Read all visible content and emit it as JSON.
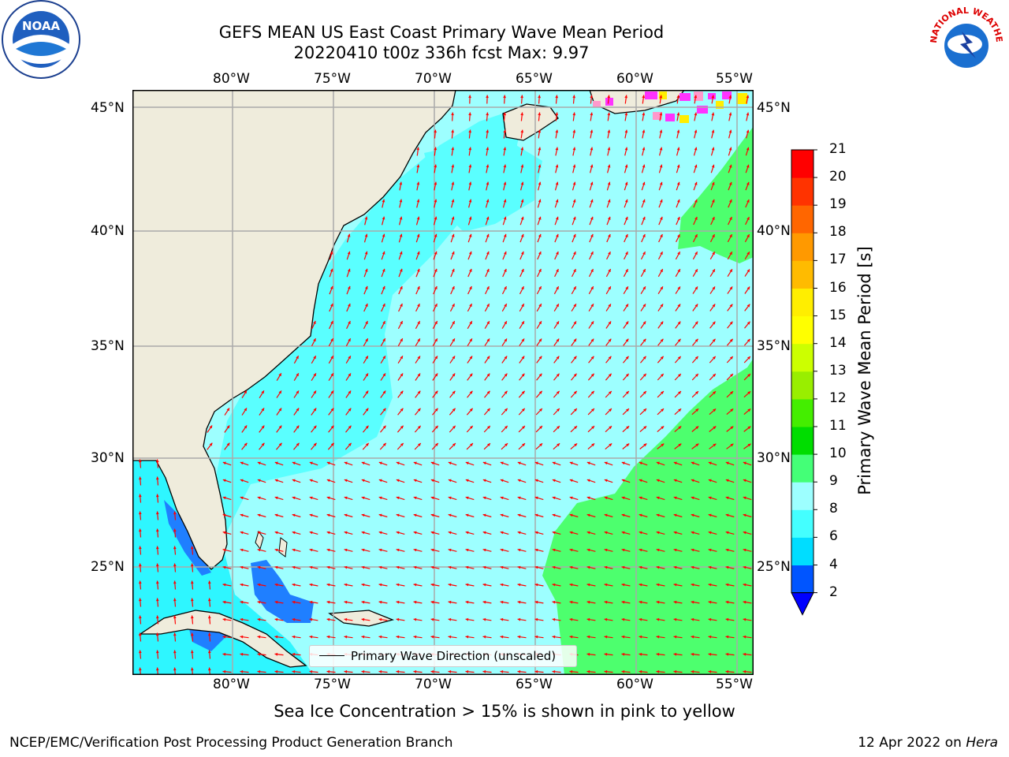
{
  "title": {
    "line1": "GEFS MEAN US East Coast Primary Wave Mean Period",
    "line2": "20220410 t00z 336h fcst   Max: 9.97"
  },
  "map": {
    "lon_labels": [
      "80°W",
      "75°W",
      "70°W",
      "65°W",
      "60°W",
      "55°W"
    ],
    "lat_labels": [
      "45°N",
      "40°N",
      "35°N",
      "30°N",
      "25°N"
    ],
    "land_color": "#efecdc",
    "grid_color": "#aaaaaa",
    "arrow_color": "#ff0000",
    "legend_label": "Primary Wave Direction (unscaled)"
  },
  "colorbar": {
    "label": "Primary Wave Mean Period [s]",
    "ticks": [
      "2",
      "4",
      "6",
      "8",
      "9",
      "10",
      "11",
      "12",
      "13",
      "14",
      "15",
      "16",
      "17",
      "18",
      "19",
      "20",
      "21"
    ],
    "colors": [
      "#0055ff",
      "#00ddff",
      "#44ffff",
      "#9dffff",
      "#44ff77",
      "#00dd00",
      "#44ee00",
      "#99ee00",
      "#ccff00",
      "#ffff00",
      "#ffee00",
      "#ffbb00",
      "#ff9900",
      "#ff6600",
      "#ff3300",
      "#ff0000"
    ],
    "extend_color": "#0000ff"
  },
  "caption": "Sea Ice Concentration > 15% is shown in pink to yellow",
  "footer": {
    "left": "NCEP/EMC/Verification Post Processing Product Generation Branch",
    "date": "12 Apr 2022 on ",
    "machine": "Hera"
  },
  "logos": {
    "left": "NOAA",
    "right": "NATIONAL WEATHER SERVICE"
  }
}
